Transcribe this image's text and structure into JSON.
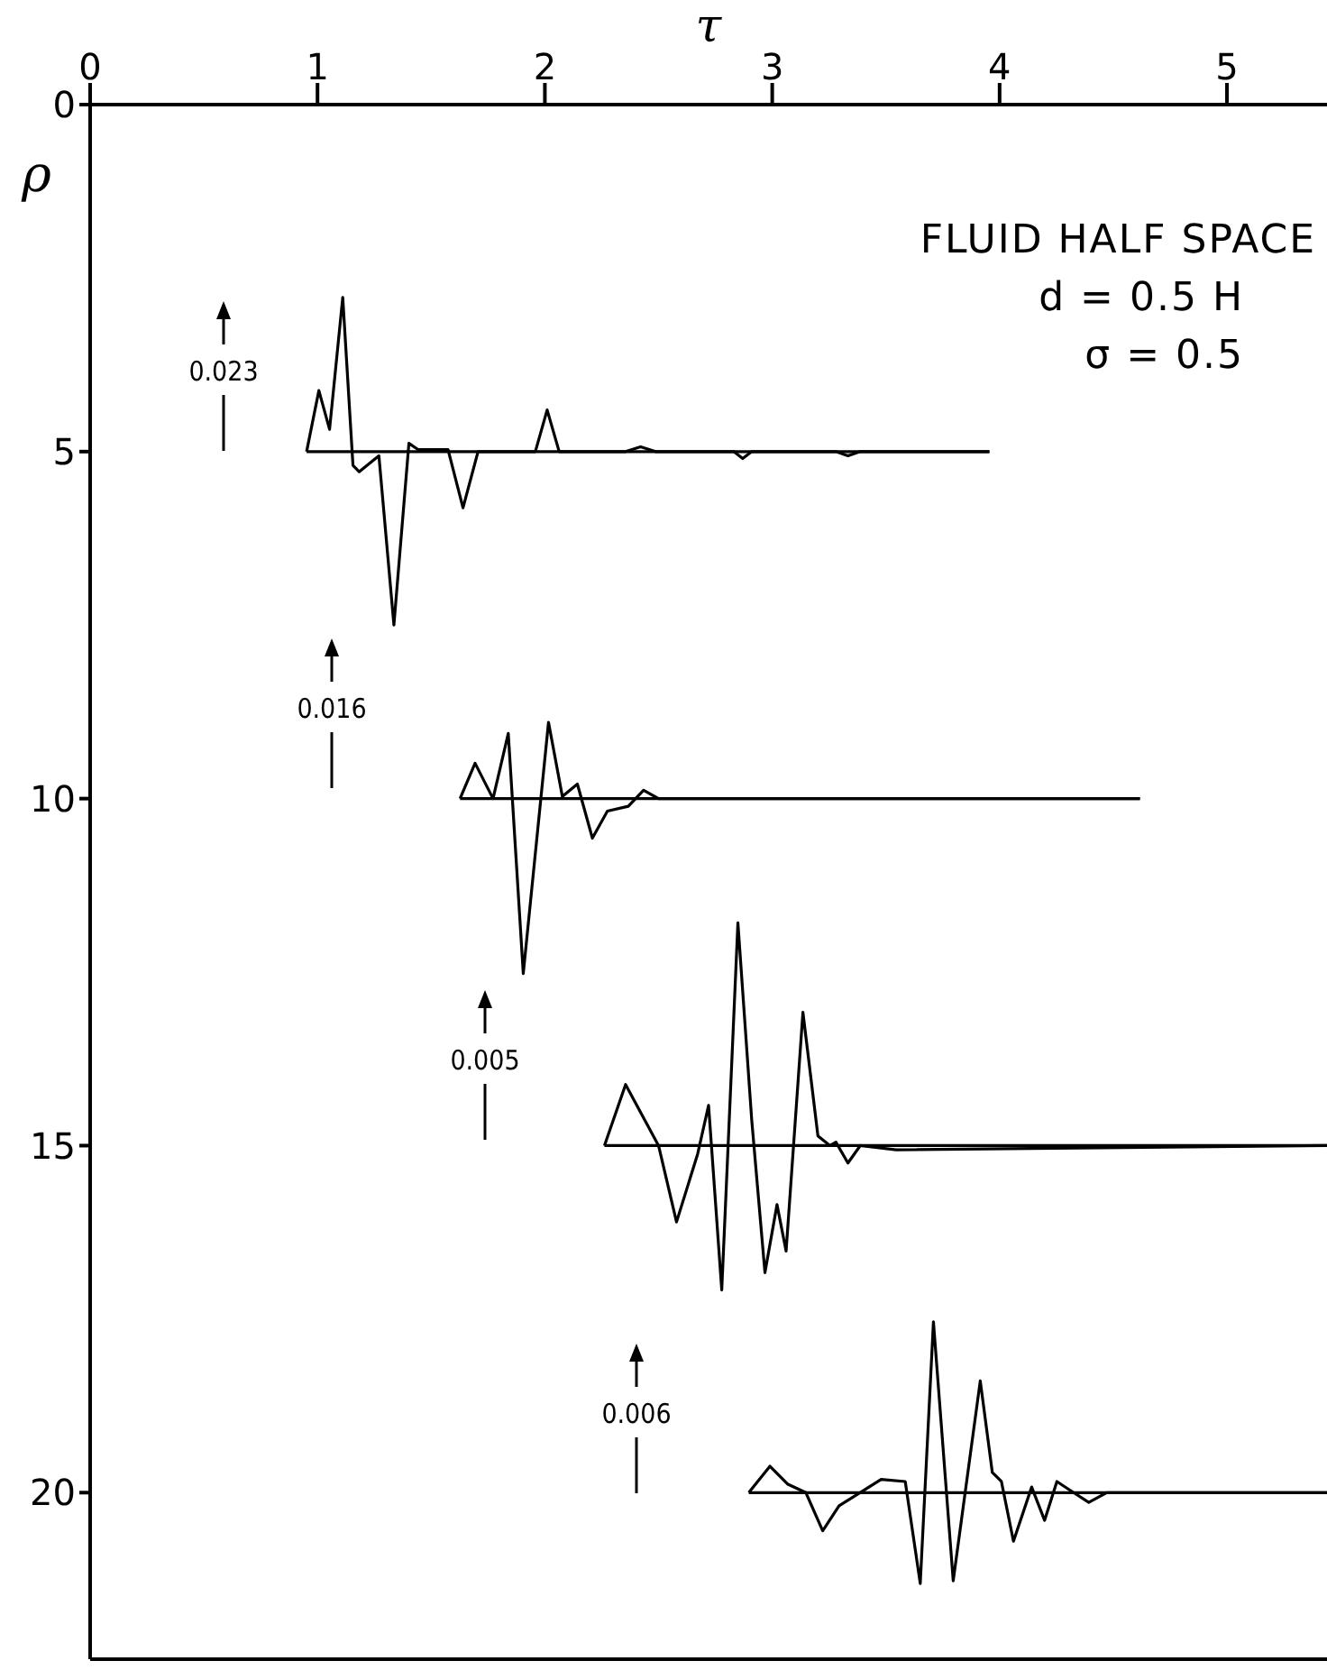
{
  "chart_data": {
    "type": "line",
    "xlabel": "τ",
    "ylabel": "ρ",
    "xlim": [
      0,
      5.44
    ],
    "ylim": [
      22.4,
      0
    ],
    "xticks": [
      0,
      1,
      2,
      3,
      4,
      5
    ],
    "yticks": [
      0,
      5,
      10,
      15,
      20
    ],
    "grid": false,
    "marker": "none",
    "line_style": "solid",
    "series": [
      {
        "color": "#000000",
        "x": [
          0.952,
          3.955
        ],
        "values": [
          5,
          5
        ]
      },
      {
        "color": "#000000",
        "x": [
          0.952,
          1.006,
          1.053,
          1.111,
          1.156,
          1.183,
          1.27,
          1.336,
          1.402,
          1.442,
          1.574,
          1.64,
          1.706,
          1.958,
          2.01,
          2.063,
          2.355,
          2.421,
          2.487,
          2.831,
          2.87,
          2.91,
          3.28,
          3.333,
          3.387,
          3.955
        ],
        "values": [
          5,
          4.12,
          4.68,
          2.78,
          5.2,
          5.29,
          5.06,
          7.5,
          4.88,
          4.97,
          4.97,
          5.81,
          5,
          5,
          4.4,
          5,
          5,
          4.93,
          5,
          5,
          5.1,
          5,
          5,
          5.06,
          5,
          5
        ]
      },
      {
        "color": "#000000",
        "x": [
          1.627,
          4.617
        ],
        "values": [
          10,
          10
        ]
      },
      {
        "color": "#000000",
        "x": [
          1.627,
          1.693,
          1.772,
          1.839,
          1.905,
          2.016,
          2.077,
          2.143,
          2.209,
          2.275,
          2.367,
          2.434,
          2.5,
          4.617
        ],
        "values": [
          10,
          9.49,
          10,
          9.06,
          12.52,
          8.9,
          9.97,
          9.79,
          10.57,
          10.18,
          10.11,
          9.88,
          10,
          10
        ]
      },
      {
        "color": "#000000",
        "x": [
          2.262,
          5.44
        ],
        "values": [
          15,
          15
        ]
      },
      {
        "color": "#000000",
        "x": [
          2.262,
          2.355,
          2.5,
          2.579,
          2.672,
          2.72,
          2.778,
          2.849,
          2.91,
          2.968,
          3.021,
          3.061,
          3.135,
          3.201,
          3.254,
          3.28,
          3.333,
          3.387,
          3.545,
          5.44
        ],
        "values": [
          15,
          14.12,
          15,
          16.1,
          15.12,
          14.42,
          17.08,
          11.79,
          14.64,
          16.83,
          15.85,
          16.52,
          13.08,
          14.86,
          15,
          14.95,
          15.25,
          15,
          15.06,
          15
        ]
      },
      {
        "color": "#000000",
        "x": [
          2.897,
          5.44
        ],
        "values": [
          20,
          20
        ]
      },
      {
        "color": "#000000",
        "x": [
          2.897,
          2.99,
          3.069,
          3.148,
          3.222,
          3.294,
          3.386,
          3.479,
          3.585,
          3.651,
          3.709,
          3.796,
          3.915,
          3.968,
          4.008,
          4.061,
          4.141,
          4.198,
          4.252,
          4.312,
          4.392,
          4.471,
          5.44
        ],
        "values": [
          20,
          19.62,
          19.88,
          20,
          20.55,
          20.19,
          20,
          19.81,
          19.84,
          21.31,
          17.54,
          21.27,
          18.39,
          19.71,
          19.84,
          20.7,
          19.92,
          20.4,
          19.84,
          19.97,
          20.14,
          20,
          20
        ]
      }
    ],
    "annotations": [
      "FLUID HALF SPACE",
      "d = 0.5 H",
      "σ = 0.5",
      "0.023",
      "0.016",
      "0.005",
      "0.006"
    ]
  }
}
